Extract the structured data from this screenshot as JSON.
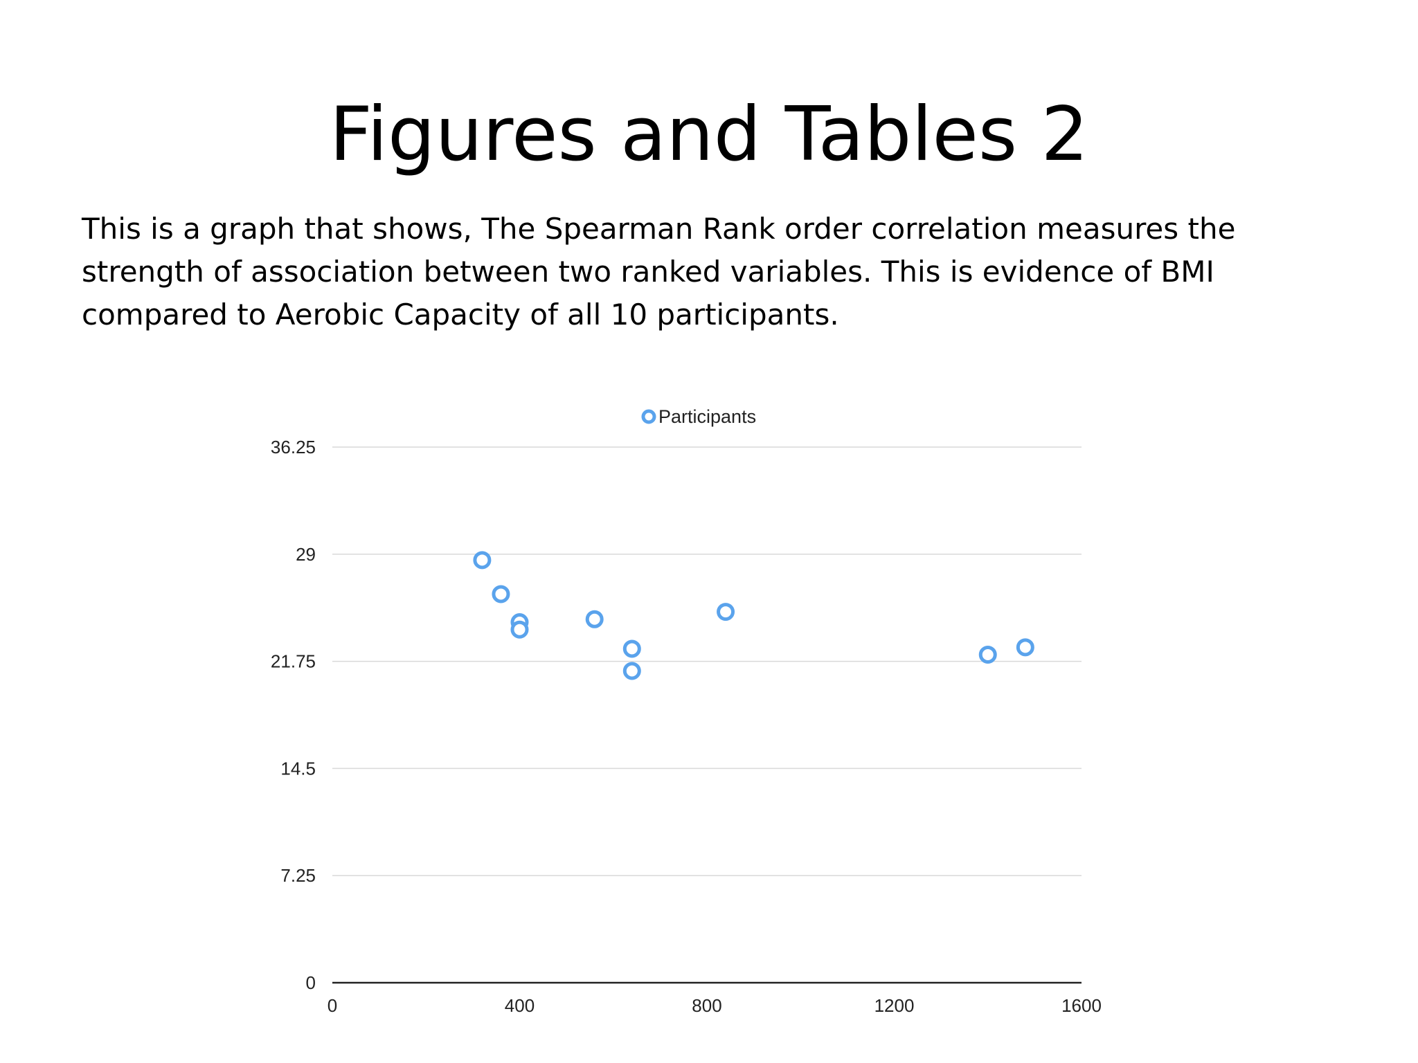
{
  "slide": {
    "title": "Figures and Tables 2",
    "body": "This is a graph that shows, The Spearman Rank order correlation measures the strength of association between two ranked variables. This is evidence of BMI compared to Aerobic Capacity of all 10 participants."
  },
  "chart_data": {
    "type": "scatter",
    "title": "",
    "xlabel": "",
    "ylabel": "",
    "xlim": [
      0,
      1600
    ],
    "ylim": [
      0,
      36.25
    ],
    "x_ticks": [
      "0",
      "400",
      "800",
      "1200",
      "1600"
    ],
    "y_ticks": [
      "0",
      "7.25",
      "14.5",
      "21.75",
      "29",
      "36.25"
    ],
    "grid": "horizontal",
    "legend_position": "top-center",
    "series": [
      {
        "name": "Participants",
        "color": "#5AA3EC",
        "marker": "hollow-circle",
        "points": [
          {
            "x": 320,
            "y": 28.6
          },
          {
            "x": 360,
            "y": 26.3
          },
          {
            "x": 400,
            "y": 24.4
          },
          {
            "x": 400,
            "y": 23.9
          },
          {
            "x": 560,
            "y": 24.6
          },
          {
            "x": 640,
            "y": 22.6
          },
          {
            "x": 640,
            "y": 21.1
          },
          {
            "x": 840,
            "y": 25.1
          },
          {
            "x": 1400,
            "y": 22.2
          },
          {
            "x": 1480,
            "y": 22.7
          }
        ]
      }
    ]
  }
}
